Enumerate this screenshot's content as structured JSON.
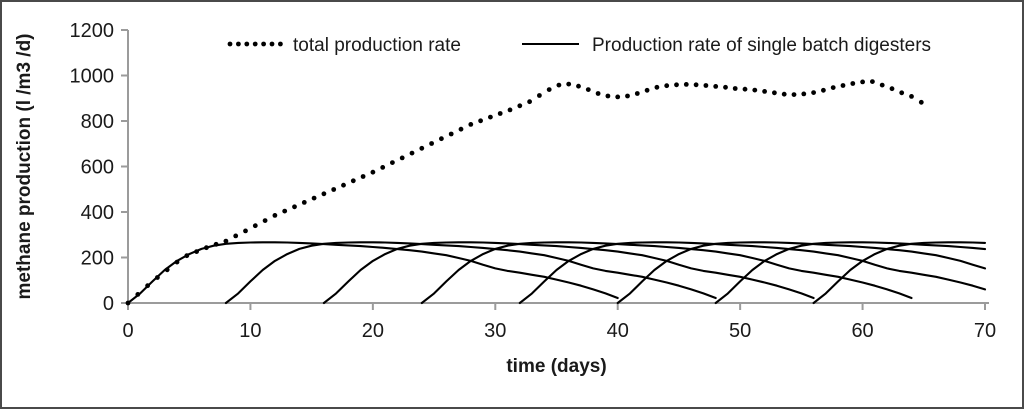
{
  "figure": {
    "background": "#ffffff",
    "border_color": "#4a4a4a",
    "axis_color": "#9b9b9b",
    "text_color": "#1a1a1a"
  },
  "chart_data": {
    "type": "line",
    "title": "",
    "xlabel": "time (days)",
    "ylabel": "methane production (l /m3 /d)",
    "xlim": [
      0,
      70
    ],
    "ylim": [
      0,
      1200
    ],
    "x_ticks": [
      0,
      10,
      20,
      30,
      40,
      50,
      60,
      70
    ],
    "y_ticks": [
      0,
      200,
      400,
      600,
      800,
      1000,
      1200
    ],
    "grid": false,
    "legend_position": "top-inside",
    "series": [
      {
        "name": "total production rate",
        "style": "dots",
        "color": "#000000",
        "x": [
          0.0,
          0.8,
          1.6,
          2.4,
          3.2,
          4.0,
          4.8,
          5.6,
          6.4,
          7.2,
          8.0,
          8.8,
          9.6,
          10.4,
          11.2,
          12.0,
          12.8,
          13.6,
          14.4,
          15.2,
          16.0,
          16.8,
          17.6,
          18.4,
          19.2,
          20.0,
          20.8,
          21.6,
          22.4,
          23.2,
          24.0,
          24.8,
          25.6,
          26.4,
          27.2,
          28.0,
          28.8,
          29.6,
          30.4,
          31.2,
          32.0,
          32.8,
          33.6,
          34.4,
          35.2,
          36.0,
          36.8,
          37.6,
          38.4,
          39.2,
          40.0,
          40.8,
          41.6,
          42.4,
          43.2,
          44.0,
          44.8,
          45.6,
          46.4,
          47.2,
          48.0,
          48.8,
          49.6,
          50.4,
          51.2,
          52.0,
          52.8,
          53.6,
          54.4,
          55.2,
          56.0,
          56.8,
          57.6,
          58.4,
          59.2,
          60.0,
          60.8,
          61.6,
          62.4,
          63.2,
          64.0,
          64.8
        ],
        "y": [
          0,
          38,
          76,
          112,
          146,
          180,
          208,
          226,
          243,
          258,
          272,
          295,
          317,
          340,
          362,
          385,
          404,
          423,
          442,
          461,
          480,
          499,
          518,
          537,
          556,
          575,
          596,
          617,
          638,
          659,
          680,
          701,
          722,
          743,
          764,
          785,
          801,
          817,
          833,
          849,
          867,
          885,
          912,
          938,
          958,
          962,
          953,
          938,
          921,
          910,
          906,
          910,
          921,
          935,
          948,
          955,
          959,
          961,
          959,
          956,
          952,
          948,
          943,
          940,
          936,
          930,
          924,
          918,
          916,
          919,
          925,
          935,
          947,
          956,
          965,
          972,
          973,
          958,
          942,
          924,
          908,
          882
        ]
      },
      {
        "name": "Production rate of single batch digesters",
        "style": "solid",
        "color": "#000000",
        "batch_start_days": [
          0,
          8,
          16,
          24,
          32,
          40,
          48,
          56
        ],
        "batch_duration_days": 40,
        "shape_t": [
          0,
          1,
          2,
          3,
          4,
          5,
          6,
          7,
          8,
          9,
          10,
          11,
          12,
          13,
          14,
          15,
          16,
          17,
          18,
          19,
          20,
          21,
          22,
          23,
          24,
          25,
          26,
          27,
          28,
          29,
          30,
          31,
          32,
          33,
          34,
          35,
          36,
          37,
          38,
          39,
          40
        ],
        "shape_r": [
          0,
          42,
          95,
          145,
          185,
          215,
          238,
          252,
          260,
          264,
          266,
          267,
          267,
          266,
          264,
          262,
          259,
          256,
          253,
          250,
          246,
          242,
          237,
          232,
          226,
          218,
          210,
          198,
          185,
          168,
          152,
          141,
          133,
          124,
          115,
          103,
          90,
          76,
          60,
          42,
          22
        ],
        "clip_x_max": 70
      }
    ]
  }
}
